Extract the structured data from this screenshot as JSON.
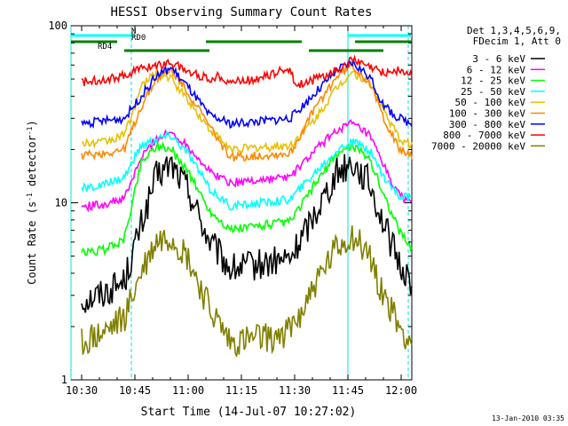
{
  "chart_data": {
    "type": "line",
    "title": "HESSI Observing Summary Count Rates",
    "xlabel": "Start Time (14-Jul-07 10:27:02)",
    "ylabel": "Count Rate (s",
    "ylabel_sup": "-1",
    "ylabel_tail": " detector",
    "ylabel_sup2": "-1",
    "ylabel_end": ")",
    "y_scale": "log",
    "ylim": [
      1,
      100
    ],
    "xlim": [
      "10:27",
      "12:03"
    ],
    "x_ticks": [
      "10:30",
      "10:45",
      "11:00",
      "11:15",
      "11:30",
      "11:45",
      "12:00"
    ],
    "y_ticks": [
      "1",
      "10",
      "100"
    ],
    "timestamp": "13-Jan-2010 03:35",
    "legend": {
      "header": [
        "Det 1,3,4,5,6,9,",
        "FDecim 1, Att 0"
      ],
      "position": "right"
    },
    "series": [
      {
        "name": "3 - 6 keV",
        "color": "#000000",
        "x": [
          10.5,
          10.6,
          10.7,
          10.78,
          10.85,
          10.92,
          11.0,
          11.1,
          11.2,
          11.35,
          11.48,
          11.6,
          11.7,
          11.77,
          11.85,
          11.92,
          11.99,
          12.05
        ],
        "y": [
          2.8,
          3.1,
          3.6,
          7.5,
          14.0,
          16.5,
          12.0,
          6.0,
          4.2,
          4.5,
          4.8,
          9.0,
          15.0,
          17.0,
          13.0,
          7.5,
          4.5,
          3.6
        ]
      },
      {
        "name": "6 - 12 keV",
        "color": "#ff00ff",
        "x": [
          10.5,
          10.6,
          10.7,
          10.78,
          10.85,
          10.92,
          11.0,
          11.1,
          11.2,
          11.35,
          11.48,
          11.6,
          11.7,
          11.77,
          11.85,
          11.92,
          11.99,
          12.05
        ],
        "y": [
          9.5,
          9.8,
          10.5,
          18.0,
          23.0,
          25.0,
          21.0,
          15.0,
          13.0,
          13.5,
          14.0,
          20.0,
          26.0,
          28.0,
          24.0,
          16.0,
          11.0,
          10.0
        ]
      },
      {
        "name": "12 - 25 keV",
        "color": "#00ff00",
        "x": [
          10.5,
          10.6,
          10.7,
          10.78,
          10.85,
          10.92,
          11.0,
          11.1,
          11.2,
          11.35,
          11.48,
          11.6,
          11.7,
          11.77,
          11.85,
          11.92,
          11.99,
          12.05
        ],
        "y": [
          5.2,
          5.4,
          6.2,
          17.0,
          21.0,
          20.0,
          15.0,
          9.0,
          7.0,
          7.5,
          7.8,
          13.0,
          19.0,
          21.0,
          18.0,
          11.0,
          7.0,
          5.5
        ]
      },
      {
        "name": "25 - 50 keV",
        "color": "#00ffff",
        "x": [
          10.5,
          10.6,
          10.7,
          10.78,
          10.85,
          10.92,
          11.0,
          11.1,
          11.2,
          11.35,
          11.48,
          11.6,
          11.7,
          11.77,
          11.85,
          11.92,
          11.99,
          12.05
        ],
        "y": [
          12.0,
          12.5,
          14.0,
          21.0,
          23.0,
          24.0,
          19.0,
          12.0,
          9.5,
          10.0,
          10.5,
          15.0,
          20.0,
          22.0,
          20.0,
          14.0,
          11.0,
          10.5
        ]
      },
      {
        "name": "50 - 100 keV",
        "color": "#e6c000",
        "x": [
          10.5,
          10.6,
          10.7,
          10.78,
          10.85,
          10.92,
          11.0,
          11.1,
          11.2,
          11.35,
          11.48,
          11.6,
          11.7,
          11.77,
          11.85,
          11.92,
          11.99,
          12.05
        ],
        "y": [
          21.5,
          22.0,
          24.0,
          45.0,
          55.0,
          50.0,
          38.0,
          26.0,
          20.0,
          20.5,
          21.0,
          30.0,
          45.0,
          55.0,
          48.0,
          33.0,
          23.0,
          21.0
        ]
      },
      {
        "name": "100 - 300 keV",
        "color": "#ff8800",
        "x": [
          10.5,
          10.6,
          10.7,
          10.78,
          10.85,
          10.92,
          11.0,
          11.1,
          11.2,
          11.35,
          11.48,
          11.6,
          11.7,
          11.77,
          11.85,
          11.92,
          11.99,
          12.05
        ],
        "y": [
          18.5,
          19.0,
          20.0,
          35.0,
          50.0,
          56.0,
          42.0,
          27.0,
          18.0,
          18.5,
          19.0,
          35.0,
          52.0,
          60.0,
          48.0,
          30.0,
          20.0,
          18.5
        ]
      },
      {
        "name": "300 - 800 keV",
        "color": "#0000ff",
        "x": [
          10.5,
          10.6,
          10.7,
          10.78,
          10.85,
          10.92,
          11.0,
          11.1,
          11.2,
          11.35,
          11.48,
          11.6,
          11.7,
          11.77,
          11.85,
          11.92,
          11.99,
          12.05
        ],
        "y": [
          28.0,
          29.0,
          30.0,
          40.0,
          52.0,
          58.0,
          45.0,
          31.0,
          28.0,
          29.0,
          30.0,
          42.0,
          56.0,
          62.0,
          52.0,
          35.0,
          30.0,
          28.0
        ]
      },
      {
        "name": "800 - 7000 keV",
        "color": "#ff0000",
        "x": [
          10.5,
          10.6,
          10.7,
          10.75,
          10.85,
          10.92,
          11.0,
          11.1,
          11.15,
          11.2,
          11.35,
          11.48,
          11.5,
          11.6,
          11.7,
          11.77,
          11.85,
          11.92,
          11.99,
          12.05
        ],
        "y": [
          48.0,
          50.0,
          52.0,
          56.0,
          60.0,
          62.0,
          55.0,
          50.0,
          52.0,
          48.0,
          51.0,
          58.0,
          46.0,
          50.0,
          56.0,
          64.0,
          58.0,
          54.0,
          56.0,
          52.0
        ]
      },
      {
        "name": "7000 - 20000 keV",
        "color": "#808000",
        "x": [
          10.5,
          10.6,
          10.7,
          10.78,
          10.85,
          10.92,
          11.0,
          11.1,
          11.2,
          11.35,
          11.48,
          11.6,
          11.7,
          11.77,
          11.85,
          11.92,
          11.99,
          12.05
        ],
        "y": [
          1.6,
          1.8,
          2.2,
          4.0,
          6.0,
          6.5,
          4.8,
          2.5,
          1.6,
          1.7,
          1.9,
          3.5,
          5.5,
          6.5,
          5.0,
          3.0,
          2.0,
          1.6
        ]
      }
    ],
    "flags": [
      {
        "name": "N",
        "color": "#00ffff",
        "segments": [
          [
            "10:27",
            "10:45"
          ],
          [
            "11:45",
            "12:03"
          ]
        ]
      },
      {
        "name": "RD0",
        "color": "#008000",
        "segments": [
          [
            "10:27",
            "10:40"
          ],
          [
            "11:05",
            "11:32"
          ],
          [
            "11:47",
            "12:03"
          ]
        ]
      },
      {
        "name": "RD4",
        "color": "#008000",
        "segments": [
          [
            "10:42",
            "11:06"
          ],
          [
            "11:34",
            "11:55"
          ]
        ]
      }
    ],
    "grid": false
  }
}
